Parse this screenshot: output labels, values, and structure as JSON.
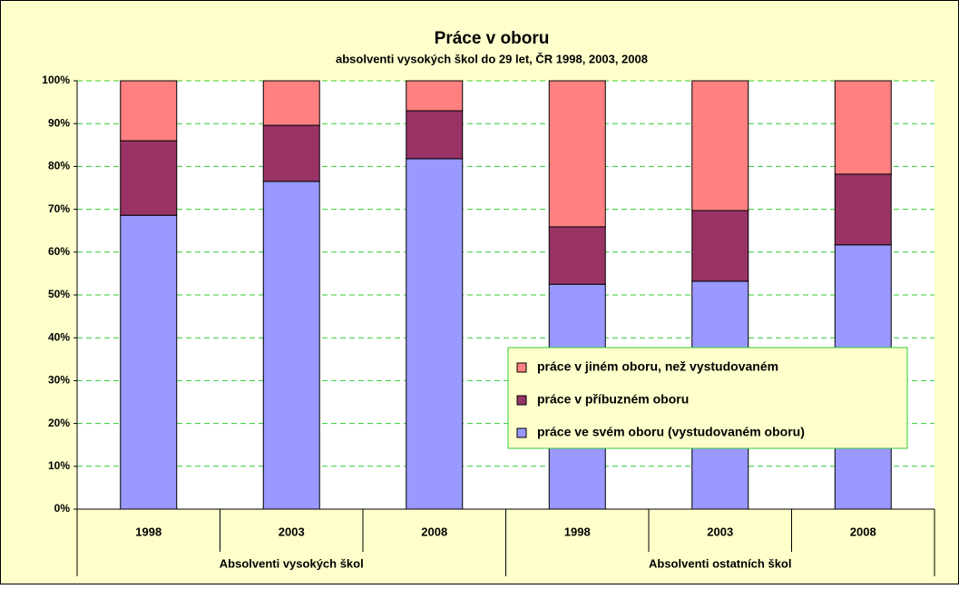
{
  "chart_data": {
    "type": "stacked_bar",
    "title": "Práce v oboru",
    "subtitle": "absolventi vysokých škol do 29 let, ČR 1998, 2003, 2008",
    "groups": [
      {
        "name": "Absolventi vysokých škol",
        "categories": [
          "1998",
          "2003",
          "2008"
        ]
      },
      {
        "name": "Absolventi ostatních škol",
        "categories": [
          "1998",
          "2003",
          "2008"
        ]
      }
    ],
    "series": [
      {
        "name": "práce ve svém oboru (vystudovaném oboru)",
        "color": "#9999ff",
        "values": [
          68.6,
          76.5,
          81.8,
          52.5,
          53.2,
          61.7
        ]
      },
      {
        "name": "práce v příbuzném oboru",
        "color": "#993366",
        "values": [
          17.4,
          13.1,
          11.2,
          13.4,
          16.5,
          16.5
        ]
      },
      {
        "name": "práce v jiném oboru, než vystudovaném",
        "color": "#ff8080",
        "values": [
          14.0,
          10.4,
          7.0,
          34.1,
          30.3,
          21.8
        ]
      }
    ],
    "ylim": [
      0,
      100
    ],
    "yticks": [
      {
        "value": 0,
        "label": "0%"
      },
      {
        "value": 10,
        "label": "10%"
      },
      {
        "value": 20,
        "label": "20%"
      },
      {
        "value": 30,
        "label": "30%"
      },
      {
        "value": 40,
        "label": "40%"
      },
      {
        "value": 50,
        "label": "50%"
      },
      {
        "value": 60,
        "label": "60%"
      },
      {
        "value": 70,
        "label": "70%"
      },
      {
        "value": 80,
        "label": "80%"
      },
      {
        "value": 90,
        "label": "90%"
      },
      {
        "value": 100,
        "label": "100%"
      }
    ],
    "grid": true,
    "legend": "right"
  }
}
